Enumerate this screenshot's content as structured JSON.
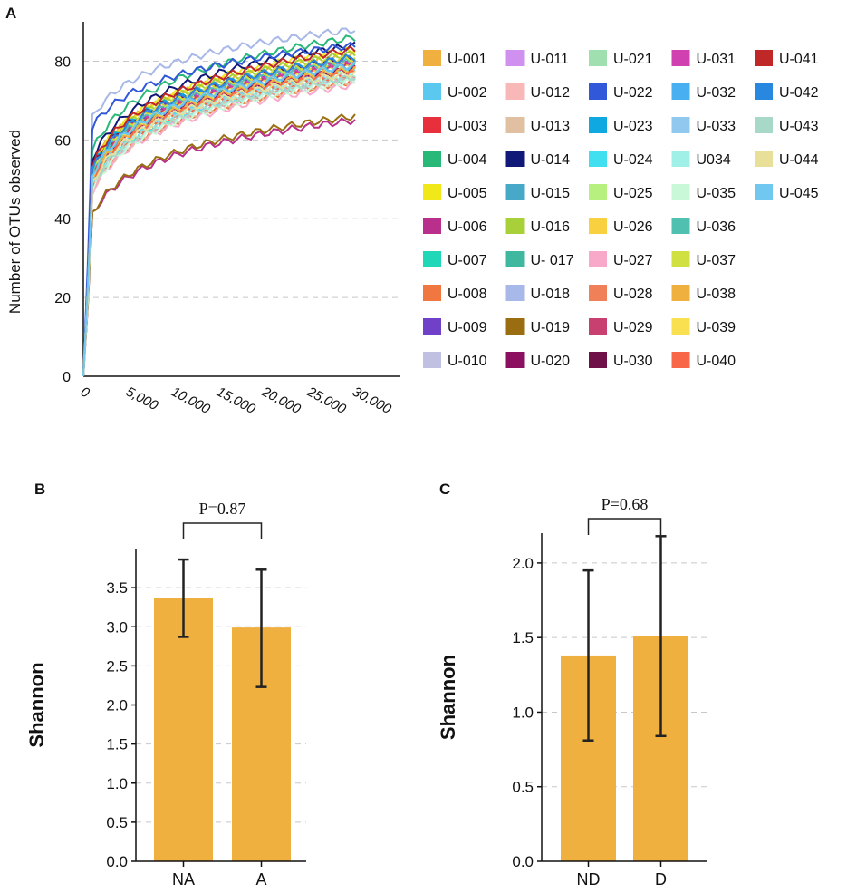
{
  "chart_data": [
    {
      "panel": "A",
      "type": "line",
      "title": "",
      "xlabel": "",
      "ylabel": "Number of OTUs observed",
      "xlim": [
        0,
        35000
      ],
      "ylim": [
        0,
        90
      ],
      "xticks": [
        "0",
        "5,000",
        "10,000",
        "15,000",
        "20,000",
        "25,000",
        "30,000"
      ],
      "xtick_values": [
        0,
        5000,
        10000,
        15000,
        20000,
        25000,
        30000
      ],
      "yticks": [
        "0",
        "20",
        "40",
        "60",
        "80"
      ],
      "ytick_values": [
        0,
        20,
        40,
        60,
        80
      ],
      "grid": "dashed horizontal",
      "legend_position": "right",
      "x": [
        0,
        1000,
        2000,
        3000,
        5000,
        7500,
        10000,
        15000,
        20000,
        25000,
        30000
      ],
      "series": [
        {
          "name": "U-001",
          "color": "#f0b040",
          "start": 46,
          "end": 82
        },
        {
          "name": "U-002",
          "color": "#5bc8f0",
          "start": 42,
          "end": 78
        },
        {
          "name": "U-003",
          "color": "#e8303c",
          "start": 44,
          "end": 80
        },
        {
          "name": "U-004",
          "color": "#28b878",
          "start": 50,
          "end": 86
        },
        {
          "name": "U-005",
          "color": "#f0e818",
          "start": 46,
          "end": 83
        },
        {
          "name": "U-006",
          "color": "#b8308c",
          "start": 35,
          "end": 65
        },
        {
          "name": "U-007",
          "color": "#20d8b8",
          "start": 44,
          "end": 79
        },
        {
          "name": "U-008",
          "color": "#f07840",
          "start": 40,
          "end": 75
        },
        {
          "name": "U-009",
          "color": "#7040c8",
          "start": 45,
          "end": 80
        },
        {
          "name": "U-010",
          "color": "#c0c0e0",
          "start": 40,
          "end": 76
        },
        {
          "name": "U-011",
          "color": "#d090f0",
          "start": 43,
          "end": 79
        },
        {
          "name": "U-012",
          "color": "#f8b8b8",
          "start": 41,
          "end": 76
        },
        {
          "name": "U-013",
          "color": "#e0c0a0",
          "start": 40,
          "end": 75
        },
        {
          "name": "U-014",
          "color": "#101878",
          "start": 48,
          "end": 84
        },
        {
          "name": "U-015",
          "color": "#48a8c8",
          "start": 42,
          "end": 77
        },
        {
          "name": "U-016",
          "color": "#a8d038",
          "start": 45,
          "end": 82
        },
        {
          "name": "U- 017",
          "color": "#40b8a0",
          "start": 43,
          "end": 79
        },
        {
          "name": "U-018",
          "color": "#a8b8e8",
          "start": 60,
          "end": 88
        },
        {
          "name": "U-019",
          "color": "#9a6e10",
          "start": 35,
          "end": 66
        },
        {
          "name": "U-020",
          "color": "#8c1060",
          "start": 44,
          "end": 78
        },
        {
          "name": "U-021",
          "color": "#a0e0b0",
          "start": 42,
          "end": 77
        },
        {
          "name": "U-022",
          "color": "#3058d8",
          "start": 58,
          "end": 84
        },
        {
          "name": "U-023",
          "color": "#10a8e0",
          "start": 46,
          "end": 81
        },
        {
          "name": "U-024",
          "color": "#40e0f0",
          "start": 42,
          "end": 76
        },
        {
          "name": "U-025",
          "color": "#b8f080",
          "start": 43,
          "end": 78
        },
        {
          "name": "U-026",
          "color": "#f8d040",
          "start": 44,
          "end": 80
        },
        {
          "name": "U-027",
          "color": "#f8a8c8",
          "start": 40,
          "end": 74
        },
        {
          "name": "U-028",
          "color": "#f08058",
          "start": 41,
          "end": 76
        },
        {
          "name": "U-029",
          "color": "#c84070",
          "start": 43,
          "end": 79
        },
        {
          "name": "U-030",
          "color": "#701048",
          "start": 46,
          "end": 81
        },
        {
          "name": "U-031",
          "color": "#d040b0",
          "start": 45,
          "end": 80
        },
        {
          "name": "U-032",
          "color": "#48b0f0",
          "start": 44,
          "end": 79
        },
        {
          "name": "U-033",
          "color": "#90c8f0",
          "start": 42,
          "end": 77
        },
        {
          "name": "U034",
          "color": "#a0f0e8",
          "start": 41,
          "end": 76
        },
        {
          "name": "U-035",
          "color": "#c8f8d8",
          "start": 40,
          "end": 75
        },
        {
          "name": "U-036",
          "color": "#50c0b0",
          "start": 44,
          "end": 80
        },
        {
          "name": "U-037",
          "color": "#d0e040",
          "start": 45,
          "end": 81
        },
        {
          "name": "U-038",
          "color": "#f0b040",
          "start": 43,
          "end": 78
        },
        {
          "name": "U-039",
          "color": "#f8e050",
          "start": 44,
          "end": 79
        },
        {
          "name": "U-040",
          "color": "#f86848",
          "start": 42,
          "end": 77
        },
        {
          "name": "U-041",
          "color": "#c02828",
          "start": 46,
          "end": 83
        },
        {
          "name": "U-042",
          "color": "#2888e0",
          "start": 45,
          "end": 81
        },
        {
          "name": "U-043",
          "color": "#a8d8c8",
          "start": 41,
          "end": 76
        },
        {
          "name": "U-044",
          "color": "#e8e098",
          "start": 42,
          "end": 77
        },
        {
          "name": "U-045",
          "color": "#70c8f0",
          "start": 44,
          "end": 79
        }
      ]
    },
    {
      "panel": "B",
      "type": "bar",
      "categories": [
        "NA",
        "A"
      ],
      "values": [
        3.37,
        2.99
      ],
      "errors_low": [
        2.87,
        2.23
      ],
      "errors_high": [
        3.86,
        3.73
      ],
      "ylabel": "Shannon",
      "ylim": [
        0,
        4.0
      ],
      "yticks": [
        "0.0",
        "0.5",
        "1.0",
        "1.5",
        "2.0",
        "2.5",
        "3.0",
        "3.5"
      ],
      "ytick_values": [
        0,
        0.5,
        1.0,
        1.5,
        2.0,
        2.5,
        3.0,
        3.5
      ],
      "annotation": "P=0.87",
      "bar_color": "#f0b040"
    },
    {
      "panel": "C",
      "type": "bar",
      "categories": [
        "ND",
        "D"
      ],
      "values": [
        1.38,
        1.51
      ],
      "errors_low": [
        0.81,
        0.84
      ],
      "errors_high": [
        1.95,
        2.18
      ],
      "ylabel": "Shannon",
      "ylim": [
        0,
        2.2
      ],
      "yticks": [
        "0.0",
        "0.5",
        "1.0",
        "1.5",
        "2.0"
      ],
      "ytick_values": [
        0,
        0.5,
        1.0,
        1.5,
        2.0
      ],
      "annotation": "P=0.68",
      "bar_color": "#f0b040"
    }
  ],
  "panel_labels": {
    "a": "A",
    "b": "B",
    "c": "C"
  }
}
